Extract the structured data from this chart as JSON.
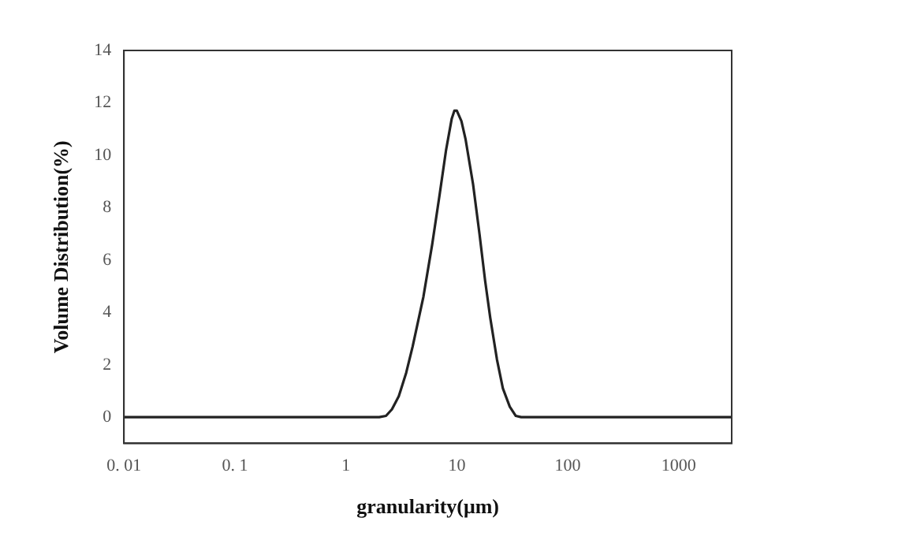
{
  "chart_data": {
    "type": "line",
    "xlabel": "granularity(μm)",
    "ylabel": "Volume Distribution(%)",
    "log": "x",
    "grid": false,
    "legend": false,
    "marker": "none",
    "line_style": "solid",
    "xlim": [
      0.01,
      3000
    ],
    "ylim": [
      -1,
      14
    ],
    "xticks": [
      {
        "value": 0.01,
        "label": "0. 01"
      },
      {
        "value": 0.1,
        "label": "0. 1"
      },
      1,
      10,
      100,
      1000
    ],
    "yticks": [
      0,
      2,
      4,
      6,
      8,
      10,
      12,
      14
    ],
    "series": [
      {
        "color": "#222222",
        "x": [
          0.01,
          2,
          2.3,
          2.6,
          3,
          3.5,
          4,
          5,
          6,
          7,
          8,
          9,
          9.5,
          10,
          11,
          12,
          14,
          16,
          18,
          20,
          23,
          26,
          30,
          34,
          38,
          3000
        ],
        "values": [
          0,
          0,
          0.05,
          0.3,
          0.8,
          1.7,
          2.7,
          4.6,
          6.6,
          8.5,
          10.2,
          11.4,
          11.7,
          11.7,
          11.3,
          10.6,
          8.9,
          7.0,
          5.2,
          3.8,
          2.2,
          1.1,
          0.4,
          0.05,
          0,
          0
        ]
      }
    ]
  }
}
